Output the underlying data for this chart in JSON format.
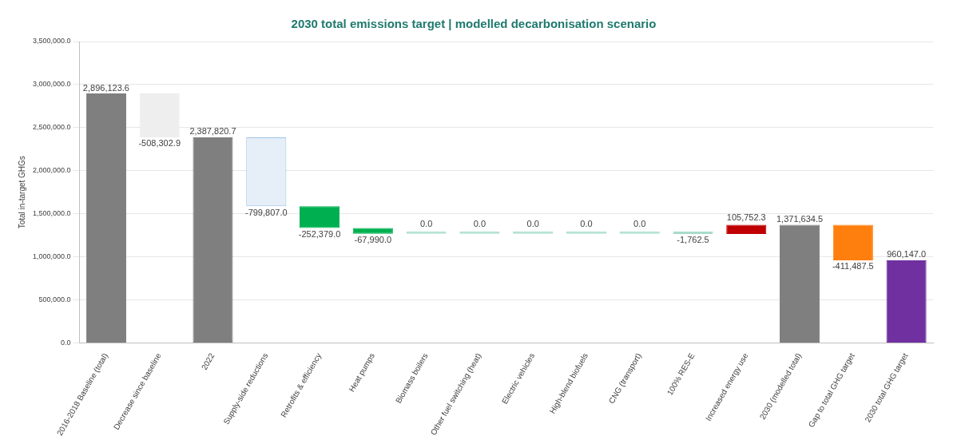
{
  "chart_data": {
    "type": "bar",
    "title": "2030 total emissions target | modelled decarbonisation scenario",
    "ylabel": "Total in-target GHGs",
    "categories": [
      "2016-2018 Baseline (total)",
      "Decrease since baseline",
      "2022",
      "Supply-side reductions",
      "Retrofits & efficiency",
      "Heat pumps",
      "Biomass boilers",
      "Other fuel switching (heat)",
      "Electric vehicles",
      "High-blend biofuels",
      "CNG (transport)",
      "100% RES-E",
      "Increased energy use",
      "2030 (modelled total)",
      "Gap to total GHG target",
      "2030 total GHG target"
    ],
    "values": [
      2896123.6,
      -508302.9,
      2387820.7,
      -799807.0,
      -252379.0,
      -67990.0,
      0.0,
      0.0,
      0.0,
      0.0,
      0.0,
      -1762.5,
      105752.3,
      1371634.5,
      -411487.5,
      960147.0
    ],
    "base": [
      0,
      2896123.6,
      0,
      2387820.7,
      1588013.7,
      1335634.7,
      1267644.7,
      1267644.7,
      1267644.7,
      1267644.7,
      1267644.7,
      1267644.7,
      1265882.2,
      0,
      1371634.5,
      0
    ],
    "colors": [
      "#7f7f7f",
      "#eeeeee",
      "#7f7f7f",
      "#e6eff8",
      "#00b050",
      "#00b050",
      "#a8dcc8",
      "#a8dcc8",
      "#a8dcc8",
      "#a8dcc8",
      "#a8dcc8",
      "#a8dcc8",
      "#c00000",
      "#7f7f7f",
      "#ff7f0e",
      "#7030a0"
    ],
    "ylim": [
      0,
      3500000
    ],
    "yticks": [
      {
        "value": 0,
        "label": "0.0"
      },
      {
        "value": 500000,
        "label": "500,000.0"
      },
      {
        "value": 1000000,
        "label": "1,000,000.0"
      },
      {
        "value": 1500000,
        "label": "1,500,000.0"
      },
      {
        "value": 2000000,
        "label": "2,000,000.0"
      },
      {
        "value": 2500000,
        "label": "2,500,000.0"
      },
      {
        "value": 3000000,
        "label": "3,000,000.0"
      },
      {
        "value": 3500000,
        "label": "3,500,000.0"
      }
    ],
    "value_labels": [
      "2,896,123.6",
      "-508,302.9",
      "2,387,820.7",
      "-799,807.0",
      "-252,379.0",
      "-67,990.0",
      "0.0",
      "0.0",
      "0.0",
      "0.0",
      "0.0",
      "-1,762.5",
      "105,752.3",
      "1,371,634.5",
      "-411,487.5",
      "960,147.0"
    ],
    "grid": "y",
    "legend": false
  }
}
